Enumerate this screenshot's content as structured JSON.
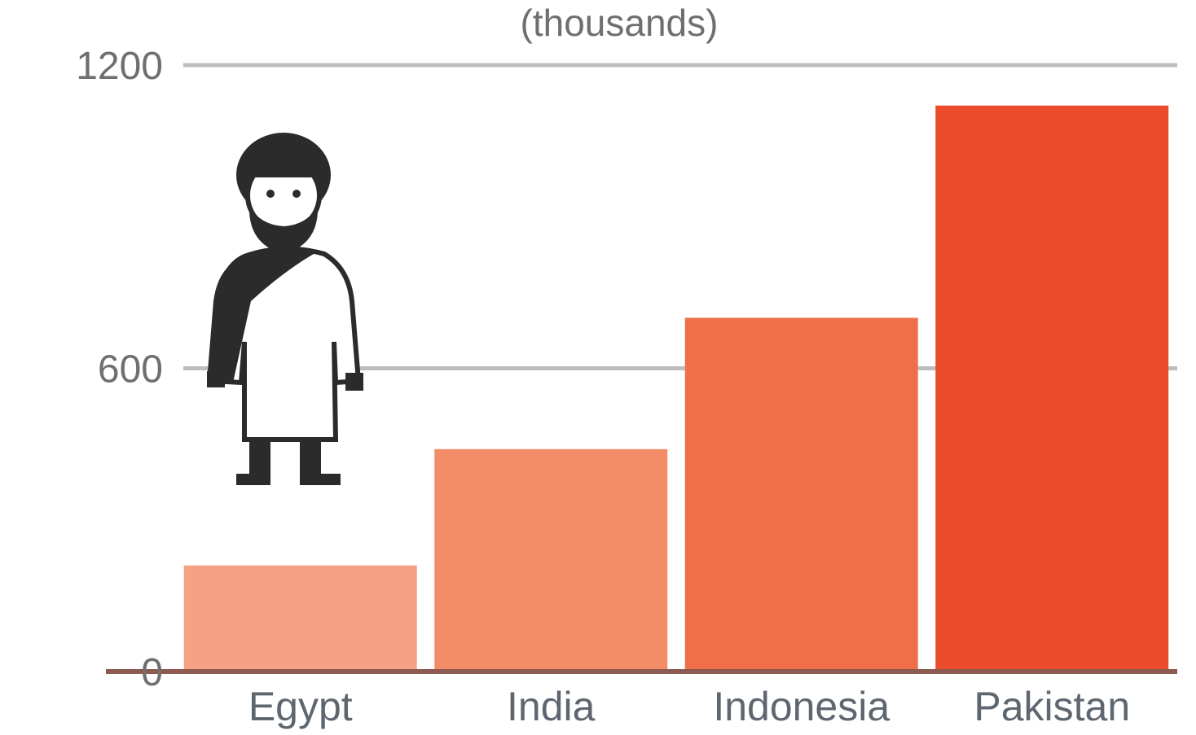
{
  "chart_data": {
    "type": "bar",
    "title": "",
    "unit_label": "(thousands)",
    "xlabel": "",
    "ylabel": "",
    "categories": [
      "Egypt",
      "India",
      "Indonesia",
      "Pakistan"
    ],
    "values": [
      210,
      440,
      700,
      1120
    ],
    "ylim": [
      0,
      1200
    ],
    "yticks": [
      0,
      600,
      1200
    ],
    "ytick_labels": [
      "0",
      "600",
      "1200"
    ],
    "grid": true,
    "legend": "none",
    "colors": [
      "#f7a184",
      "#f28d67",
      "#ef6f48",
      "#eb4d2c"
    ],
    "axis_color": "#8c5a50",
    "grid_color": "#bdbdbd",
    "illustration": "bearded-man-figure"
  }
}
